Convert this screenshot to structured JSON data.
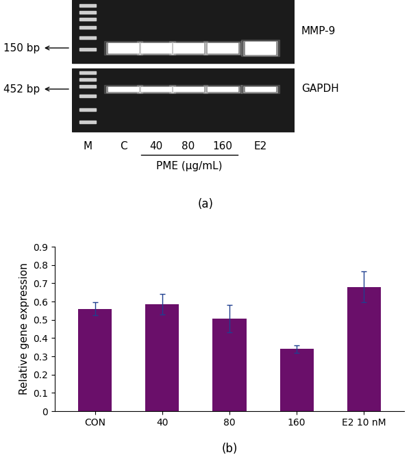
{
  "gel": {
    "rows": [
      {
        "name": "MMP-9",
        "size": "150 bp"
      },
      {
        "name": "GAPDH",
        "size": "452 bp"
      }
    ],
    "lanes": [
      "M",
      "C",
      "40",
      "80",
      "160",
      "E2"
    ],
    "group_label": "PME (μg/mL)",
    "caption": "(a)"
  },
  "chart_data": {
    "type": "bar",
    "categories": [
      "CON",
      "40",
      "80",
      "160",
      "E2 10 nM"
    ],
    "values": [
      0.56,
      0.585,
      0.505,
      0.34,
      0.68
    ],
    "errors": [
      0.035,
      0.055,
      0.075,
      0.02,
      0.085
    ],
    "color": "#6a0f6a",
    "y_label": "Relative gene expression",
    "ylim": [
      0,
      0.9
    ],
    "yticks": [
      0,
      0.1,
      0.2,
      0.3,
      0.4,
      0.5,
      0.6,
      0.7,
      0.8,
      0.9
    ],
    "grid": false,
    "caption": "(b)"
  }
}
